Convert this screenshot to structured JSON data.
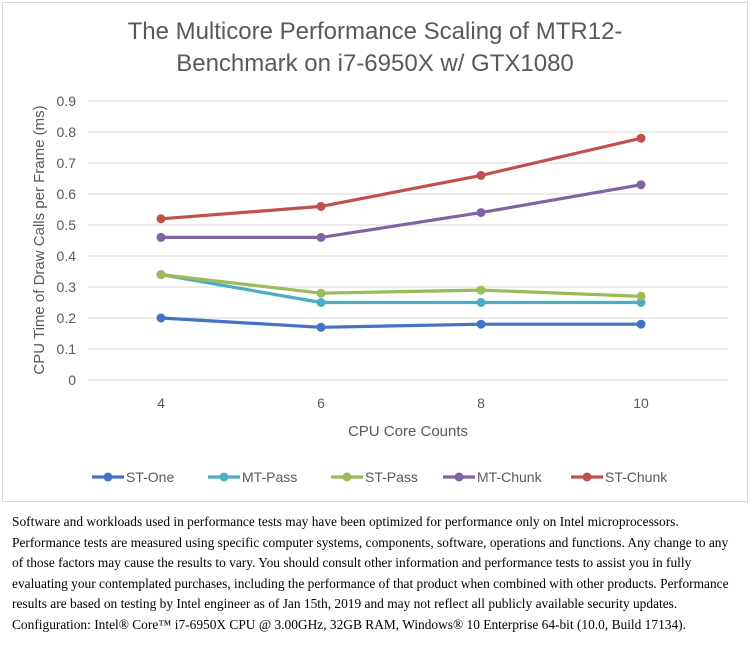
{
  "chart_data": {
    "type": "line",
    "title_lines": [
      "The Multicore Performance Scaling of MTR12-",
      "Benchmark on i7-6950X w/ GTX1080"
    ],
    "title": "The Multicore Performance Scaling of MTR12-Benchmark on i7-6950X w/ GTX1080",
    "xlabel": "CPU Core Counts",
    "ylabel": "CPU Time of Draw Calls per Frame (ms)",
    "categories": [
      "4",
      "6",
      "8",
      "10"
    ],
    "ylim": [
      0,
      0.9
    ],
    "yticks": [
      "0",
      "0.1",
      "0.2",
      "0.3",
      "0.4",
      "0.5",
      "0.6",
      "0.7",
      "0.8",
      "0.9"
    ],
    "grid": true,
    "legend_position": "bottom",
    "series": [
      {
        "name": "ST-One",
        "color": "#4472c4",
        "values": [
          0.2,
          0.17,
          0.18,
          0.18
        ]
      },
      {
        "name": "MT-Pass",
        "color": "#4bacc6",
        "values": [
          0.34,
          0.25,
          0.25,
          0.25
        ]
      },
      {
        "name": "ST-Pass",
        "color": "#9bbb59",
        "values": [
          0.34,
          0.28,
          0.29,
          0.27
        ]
      },
      {
        "name": "MT-Chunk",
        "color": "#8064a2",
        "values": [
          0.46,
          0.46,
          0.54,
          0.63
        ]
      },
      {
        "name": "ST-Chunk",
        "color": "#c0504d",
        "values": [
          0.52,
          0.56,
          0.66,
          0.78
        ]
      }
    ]
  },
  "disclaimer": "Software and workloads used in performance tests may have been optimized for performance only on Intel microprocessors.  Performance tests are measured using specific computer systems, components, software, operations and functions.  Any change to any of those factors may cause the results to vary.  You should consult other information and performance tests to assist you in fully evaluating your contemplated purchases, including the performance of that product when combined with other products.  Performance results are based on testing by Intel engineer as of Jan 15th, 2019 and may not reflect all publicly available security updates.  Configuration: Intel® Core™ i7-6950X CPU @ 3.00GHz, 32GB RAM, Windows® 10 Enterprise 64-bit (10.0, Build 17134)."
}
